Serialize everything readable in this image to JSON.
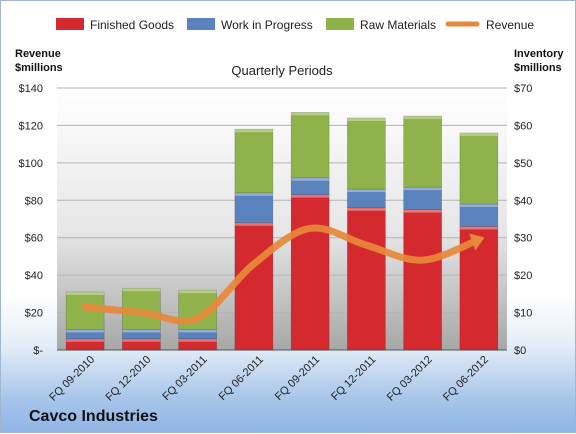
{
  "chart_data": {
    "type": "bar",
    "title": "Quarterly Periods",
    "company": "Cavco Industries",
    "left_axis": {
      "label_line1": "Revenue",
      "label_line2": "$millions",
      "ticks": [
        "$140",
        "$120",
        "$100",
        "$80",
        "$60",
        "$40",
        "$20",
        "$-"
      ],
      "range": [
        0,
        140
      ]
    },
    "right_axis": {
      "label_line1": "Inventory",
      "label_line2": "$millions",
      "ticks": [
        "$70",
        "$60",
        "$50",
        "$40",
        "$30",
        "$20",
        "$10",
        "$0"
      ],
      "range": [
        0,
        70
      ]
    },
    "categories": [
      "FQ 09-2010",
      "FQ 12-2010",
      "FQ 03-2011",
      "FQ 06-2011",
      "FQ 09-2011",
      "FQ 12-2011",
      "FQ 03-2012",
      "FQ 06-2012"
    ],
    "legend": [
      "Finished Goods",
      "Work in Progress",
      "Raw Materials",
      "Revenue"
    ],
    "series": [
      {
        "name": "Finished Goods",
        "type": "stacked-bar",
        "axis": "right",
        "color": "#d42a2f",
        "values": [
          3,
          3,
          3,
          34,
          41.5,
          38,
          37.5,
          33
        ]
      },
      {
        "name": "Work in Progress",
        "type": "stacked-bar",
        "axis": "right",
        "color": "#5a82bd",
        "values": [
          2.5,
          2.5,
          2.5,
          8,
          4.5,
          5,
          6,
          6
        ]
      },
      {
        "name": "Raw Materials",
        "type": "stacked-bar",
        "axis": "right",
        "color": "#8fb24b",
        "values": [
          10,
          11,
          10.5,
          17,
          17.5,
          19,
          19,
          19
        ]
      },
      {
        "name": "Revenue",
        "type": "line",
        "axis": "left",
        "color": "#e8883a",
        "values": [
          23,
          20,
          17,
          46,
          65,
          56,
          48,
          59
        ]
      }
    ],
    "grid": true,
    "legend_position": "top"
  }
}
